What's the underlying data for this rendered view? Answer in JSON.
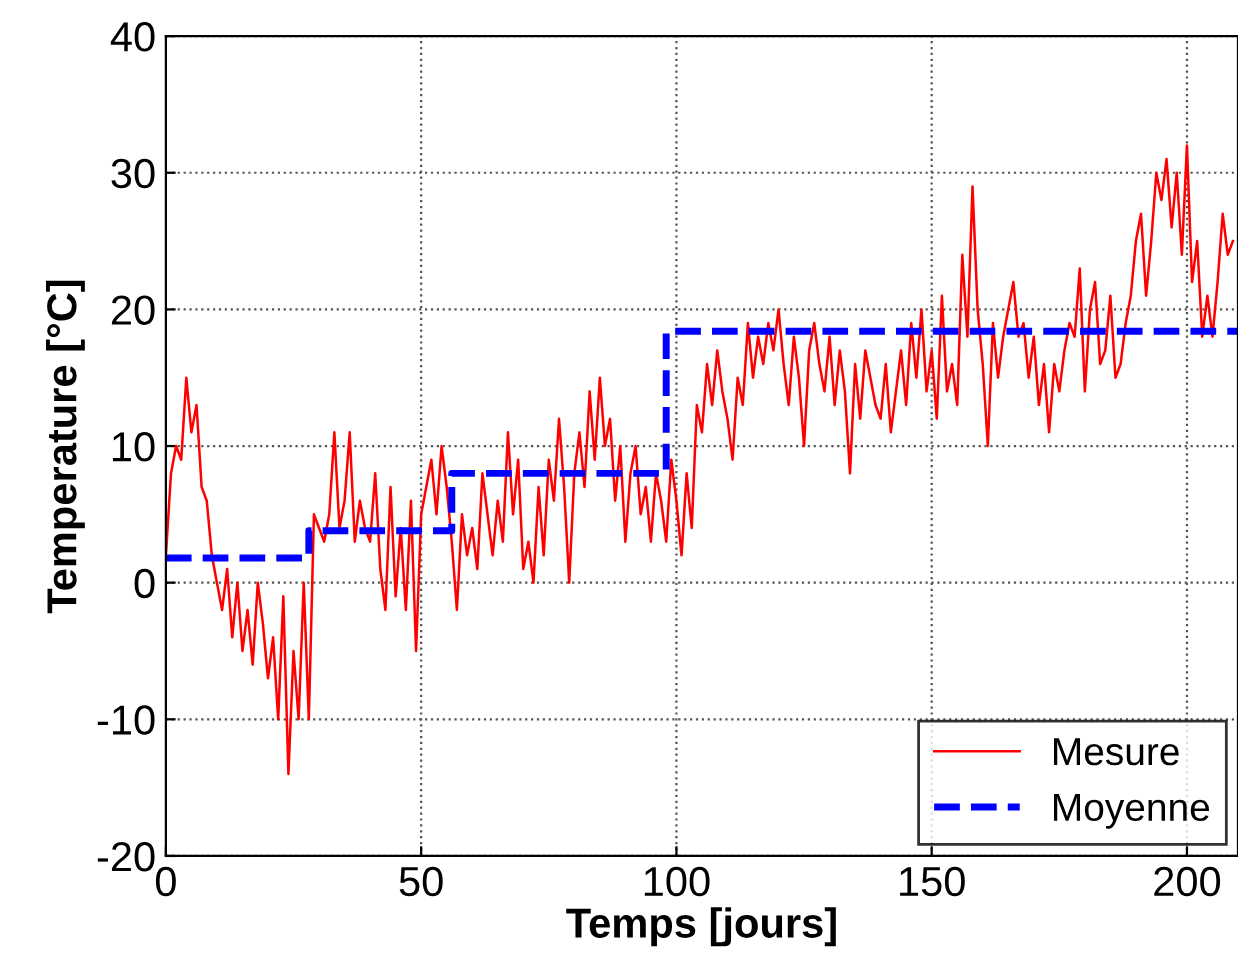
{
  "chart_data": {
    "type": "line",
    "xlabel": "Temps [jours]",
    "ylabel": "Temperature [°C]",
    "x": [
      0,
      1,
      2,
      3,
      4,
      5,
      6,
      7,
      8,
      9,
      10,
      11,
      12,
      13,
      14,
      15,
      16,
      17,
      18,
      19,
      20,
      21,
      22,
      23,
      24,
      25,
      26,
      27,
      28,
      29,
      30,
      31,
      32,
      33,
      34,
      35,
      36,
      37,
      38,
      39,
      40,
      41,
      42,
      43,
      44,
      45,
      46,
      47,
      48,
      49,
      50,
      51,
      52,
      53,
      54,
      55,
      56,
      57,
      58,
      59,
      60,
      61,
      62,
      63,
      64,
      65,
      66,
      67,
      68,
      69,
      70,
      71,
      72,
      73,
      74,
      75,
      76,
      77,
      78,
      79,
      80,
      81,
      82,
      83,
      84,
      85,
      86,
      87,
      88,
      89,
      90,
      91,
      92,
      93,
      94,
      95,
      96,
      97,
      98,
      99,
      100,
      101,
      102,
      103,
      104,
      105,
      106,
      107,
      108,
      109,
      110,
      111,
      112,
      113,
      114,
      115,
      116,
      117,
      118,
      119,
      120,
      121,
      122,
      123,
      124,
      125,
      126,
      127,
      128,
      129,
      130,
      131,
      132,
      133,
      134,
      135,
      136,
      137,
      138,
      139,
      140,
      141,
      142,
      143,
      144,
      145,
      146,
      147,
      148,
      149,
      150,
      151,
      152,
      153,
      154,
      155,
      156,
      157,
      158,
      159,
      160,
      161,
      162,
      163,
      164,
      165,
      166,
      167,
      168,
      169,
      170,
      171,
      172,
      173,
      174,
      175,
      176,
      177,
      178,
      179,
      180,
      181,
      182,
      183,
      184,
      185,
      186,
      187,
      188,
      189,
      190,
      191,
      192,
      193,
      194,
      195,
      196,
      197,
      198,
      199,
      200,
      201,
      202,
      203,
      204,
      205,
      206,
      207,
      208,
      209
    ],
    "series": [
      {
        "name": "Mesure",
        "color": "#ff0000",
        "line_style": "solid",
        "values": [
          2,
          8,
          10,
          9,
          15,
          11,
          13,
          7,
          6,
          2,
          0,
          -2,
          1,
          -4,
          0,
          -5,
          -2,
          -6,
          0,
          -3,
          -7,
          -4,
          -10,
          -1,
          -14,
          -5,
          -10,
          0,
          -10,
          5,
          4,
          3,
          5,
          11,
          4,
          6,
          11,
          3,
          6,
          4,
          3,
          8,
          1,
          -2,
          7,
          -1,
          4,
          -2,
          6,
          -5,
          5,
          7,
          9,
          5,
          10,
          7,
          3,
          -2,
          5,
          2,
          4,
          1,
          8,
          5,
          2,
          6,
          3,
          11,
          5,
          9,
          1,
          3,
          0,
          7,
          2,
          9,
          6,
          12,
          7,
          0,
          8,
          11,
          7,
          14,
          9,
          15,
          10,
          12,
          6,
          10,
          3,
          8,
          10,
          5,
          7,
          3,
          8,
          6,
          3,
          9,
          6,
          2,
          8,
          4,
          13,
          11,
          16,
          13,
          17,
          14,
          12,
          9,
          15,
          13,
          19,
          15,
          18,
          16,
          19,
          17,
          20,
          16,
          13,
          18,
          15,
          10,
          17,
          19,
          16,
          14,
          18,
          13,
          17,
          14,
          8,
          16,
          12,
          17,
          15,
          13,
          12,
          16,
          11,
          14,
          17,
          13,
          19,
          15,
          20,
          14,
          17,
          12,
          21,
          14,
          16,
          13,
          24,
          18,
          29,
          20,
          16,
          10,
          19,
          15,
          18,
          20,
          22,
          18,
          19,
          15,
          18,
          13,
          16,
          11,
          16,
          14,
          17,
          19,
          18,
          23,
          14,
          20,
          22,
          16,
          17,
          21,
          15,
          16,
          19,
          21,
          25,
          27,
          21,
          25,
          30,
          28,
          31,
          26,
          30,
          24,
          32,
          22,
          25,
          18,
          21,
          18,
          22,
          27,
          24,
          25
        ]
      },
      {
        "name": "Moyenne",
        "color": "#0000ff",
        "type": "step",
        "line_style": "dashed",
        "x": [
          0,
          28,
          56,
          98,
          210
        ],
        "values": [
          1.8,
          3.8,
          8.0,
          18.4,
          18.4
        ]
      }
    ],
    "xlim": [
      0,
      210
    ],
    "xticks": [
      0,
      50,
      100,
      150,
      200
    ],
    "ylim": [
      -20,
      40
    ],
    "yticks": [
      -20,
      -10,
      0,
      10,
      20,
      30,
      40
    ],
    "grid": true,
    "legend": "bottom right"
  }
}
